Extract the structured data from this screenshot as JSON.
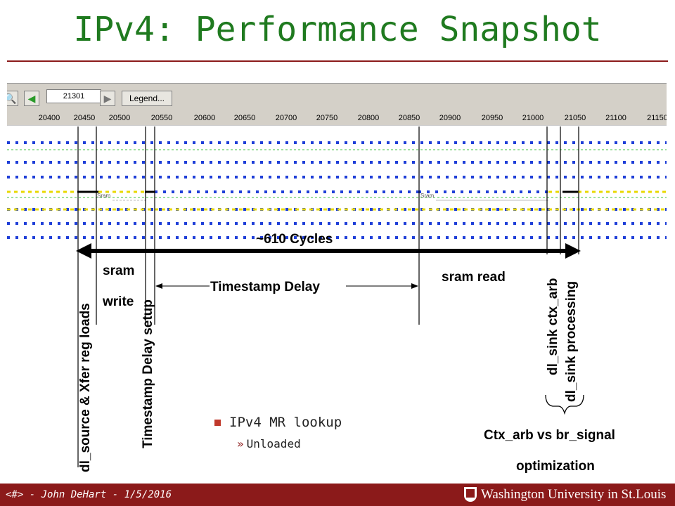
{
  "slide": {
    "title": "IPv4: Performance Snapshot",
    "footer": "<#> - John DeHart - 1/5/2016",
    "logo_text": "Washington University in St.Louis"
  },
  "simulator": {
    "cycle_field": "21301",
    "legend_button": "Legend...",
    "ruler_ticks": [
      "20400",
      "20450",
      "20500",
      "20550",
      "20600",
      "20650",
      "20700",
      "20750",
      "20800",
      "20850",
      "20900",
      "20950",
      "21000",
      "21050",
      "21100",
      "21150"
    ],
    "sram_tag": "Sram",
    "colors": {
      "blue_dots": "#1f3fd8",
      "yellow_line": "#e8d800",
      "green_dashes": "#40c040"
    }
  },
  "annotations": {
    "cycles": "~610 Cycles",
    "sram_write_1": "sram",
    "sram_write_2": "write",
    "timestamp_delay": "Timestamp Delay",
    "sram_read": "sram read",
    "dl_source": "dl_source & Xfer reg loads",
    "ts_delay_setup": "Timestamp Delay setup",
    "dl_sink_ctx_arb": "dl_sink ctx_arb",
    "dl_sink_processing": "dl_sink processing",
    "ctx_arb_1": "Ctx_arb vs br_signal",
    "ctx_arb_2": "optimization"
  },
  "bullets": {
    "main": "IPv4 MR lookup",
    "sub": "Unloaded"
  }
}
